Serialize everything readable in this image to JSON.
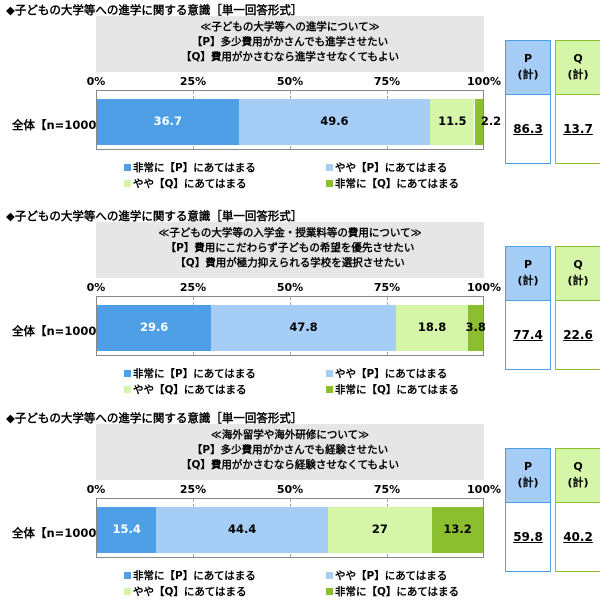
{
  "labels": {
    "ticks": [
      "0%",
      "25%",
      "50%",
      "75%",
      "100%"
    ],
    "row_label": "全体【n=1000】",
    "legend": [
      "非常に【P】にあてはまる",
      "やや【P】にあてはまる",
      "やや【Q】にあてはまる",
      "非常に【Q】にあてはまる"
    ],
    "summary_headers": [
      [
        "P",
        "(計)"
      ],
      [
        "Q",
        "(計)"
      ]
    ]
  },
  "colors": {
    "very_p": "#4e9fe6",
    "somewhat_p": "#a5cdf5",
    "somewhat_q": "#d5f5a8",
    "very_q": "#8cbf2f",
    "p_box_fill": "#a5cdf5",
    "p_box_border": "#4e9fe6",
    "q_box_fill": "#d5f5a8",
    "q_box_border": "#8cbf2f"
  },
  "chart_data": [
    {
      "type": "bar",
      "orientation": "horizontal-stacked-100",
      "title": "◆子どもの大学等への進学に関する意識［単一回答形式］",
      "subtitle": [
        "≪子どもの大学等への進学について≫",
        "【P】多少費用がかさんでも進学させたい",
        "【Q】費用がかさむなら進学させなくてもよい"
      ],
      "categories": [
        "全体【n=1000】"
      ],
      "series": [
        {
          "name": "非常に【P】にあてはまる",
          "values": [
            36.7
          ]
        },
        {
          "name": "やや【P】にあてはまる",
          "values": [
            49.6
          ]
        },
        {
          "name": "やや【Q】にあてはまる",
          "values": [
            11.5
          ]
        },
        {
          "name": "非常に【Q】にあてはまる",
          "values": [
            2.2
          ]
        }
      ],
      "xlim": [
        0,
        100
      ],
      "grid": true,
      "legend_position": "bottom",
      "summary": {
        "P": "86.3",
        "Q": "13.7"
      }
    },
    {
      "type": "bar",
      "orientation": "horizontal-stacked-100",
      "title": "◆子どもの大学等への進学に関する意識［単一回答形式］",
      "subtitle": [
        "≪子どもの大学等の入学金・授業料等の費用について≫",
        "【P】費用にこだわらず子どもの希望を優先させたい",
        "【Q】費用が極力抑えられる学校を選択させたい"
      ],
      "categories": [
        "全体【n=1000】"
      ],
      "series": [
        {
          "name": "非常に【P】にあてはまる",
          "values": [
            29.6
          ]
        },
        {
          "name": "やや【P】にあてはまる",
          "values": [
            47.8
          ]
        },
        {
          "name": "やや【Q】にあてはまる",
          "values": [
            18.8
          ]
        },
        {
          "name": "非常に【Q】にあてはまる",
          "values": [
            3.8
          ]
        }
      ],
      "xlim": [
        0,
        100
      ],
      "grid": true,
      "legend_position": "bottom",
      "summary": {
        "P": "77.4",
        "Q": "22.6"
      }
    },
    {
      "type": "bar",
      "orientation": "horizontal-stacked-100",
      "title": "◆子どもの大学等への進学に関する意識［単一回答形式］",
      "subtitle": [
        "≪海外留学や海外研修について≫",
        "【P】多少費用がかさんでも経験させたい",
        "【Q】費用がかさむなら経験させなくてもよい"
      ],
      "categories": [
        "全体【n=1000】"
      ],
      "series": [
        {
          "name": "非常に【P】にあてはまる",
          "values": [
            15.4
          ]
        },
        {
          "name": "やや【P】にあてはまる",
          "values": [
            44.4
          ]
        },
        {
          "name": "やや【Q】にあてはまる",
          "values": [
            27.0
          ]
        },
        {
          "name": "非常に【Q】にあてはまる",
          "values": [
            13.2
          ]
        }
      ],
      "xlim": [
        0,
        100
      ],
      "grid": true,
      "legend_position": "bottom",
      "summary": {
        "P": "59.8",
        "Q": "40.2"
      }
    }
  ]
}
